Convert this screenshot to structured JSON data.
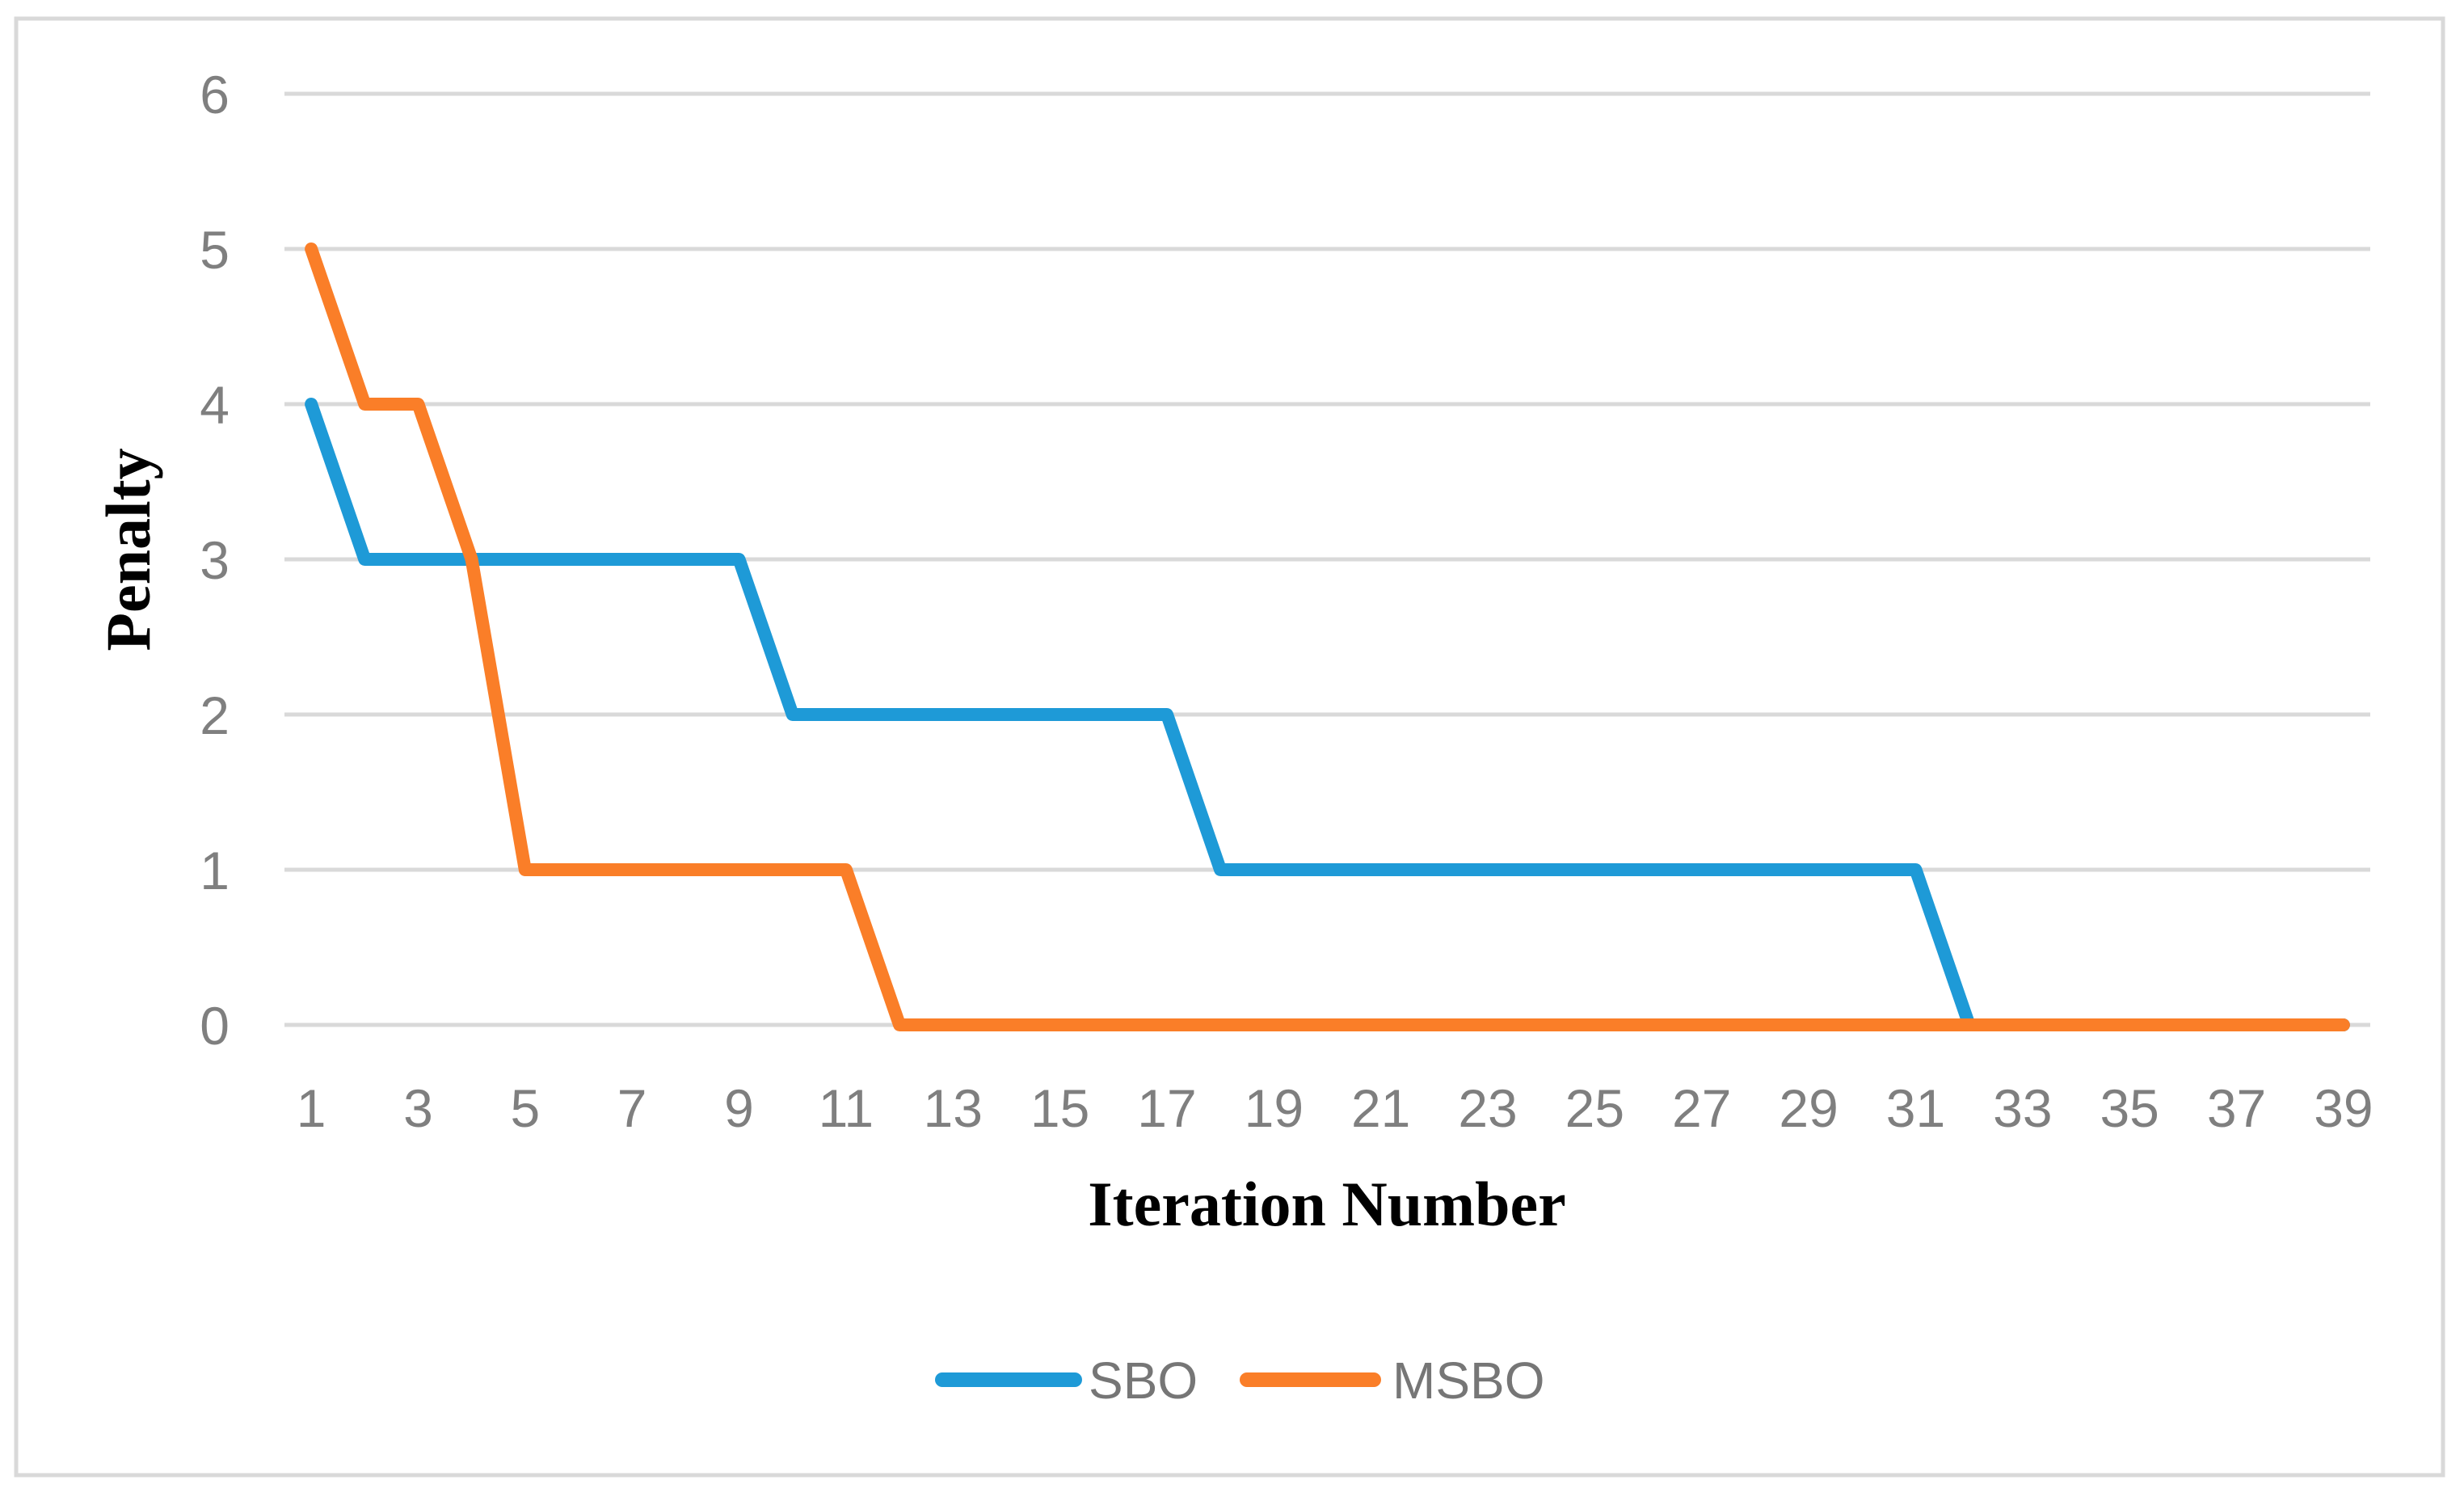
{
  "figure": {
    "background_color": "#ffffff",
    "border_color": "#d9d9d9",
    "gridline_color": "#d9d9d9",
    "tick_label_color": "#7f7f7f",
    "legend_label_color": "#767676",
    "axis_title_color": "#000000"
  },
  "chart_data": {
    "type": "line",
    "title": "",
    "xlabel": "Iteration Number",
    "ylabel": "Penalty",
    "x": [
      1,
      2,
      3,
      4,
      5,
      6,
      7,
      8,
      9,
      10,
      11,
      12,
      13,
      14,
      15,
      16,
      17,
      18,
      19,
      20,
      21,
      22,
      23,
      24,
      25,
      26,
      27,
      28,
      29,
      30,
      31,
      32,
      33,
      34,
      35,
      36,
      37,
      38,
      39
    ],
    "x_tick_labels": [
      "1",
      "3",
      "5",
      "7",
      "9",
      "11",
      "13",
      "15",
      "17",
      "19",
      "21",
      "23",
      "25",
      "27",
      "29",
      "31",
      "33",
      "35",
      "37",
      "39"
    ],
    "y_tick_labels": [
      "0",
      "1",
      "2",
      "3",
      "4",
      "5",
      "6"
    ],
    "ylim": [
      0,
      6
    ],
    "xlim": [
      1,
      39
    ],
    "grid": "horizontal",
    "legend_position": "bottom-center",
    "series": [
      {
        "name": "SBO",
        "color": "#1e9ad7",
        "values": [
          4,
          3,
          3,
          3,
          3,
          3,
          3,
          3,
          3,
          2,
          2,
          2,
          2,
          2,
          2,
          2,
          2,
          1,
          1,
          1,
          1,
          1,
          1,
          1,
          1,
          1,
          1,
          1,
          1,
          1,
          1,
          0,
          0,
          0,
          0,
          0,
          0,
          0,
          0
        ]
      },
      {
        "name": "MSBO",
        "color": "#fa7e28",
        "values": [
          5,
          4,
          4,
          3,
          1,
          1,
          1,
          1,
          1,
          1,
          1,
          0,
          0,
          0,
          0,
          0,
          0,
          0,
          0,
          0,
          0,
          0,
          0,
          0,
          0,
          0,
          0,
          0,
          0,
          0,
          0,
          0,
          0,
          0,
          0,
          0,
          0,
          0,
          0
        ]
      }
    ]
  }
}
